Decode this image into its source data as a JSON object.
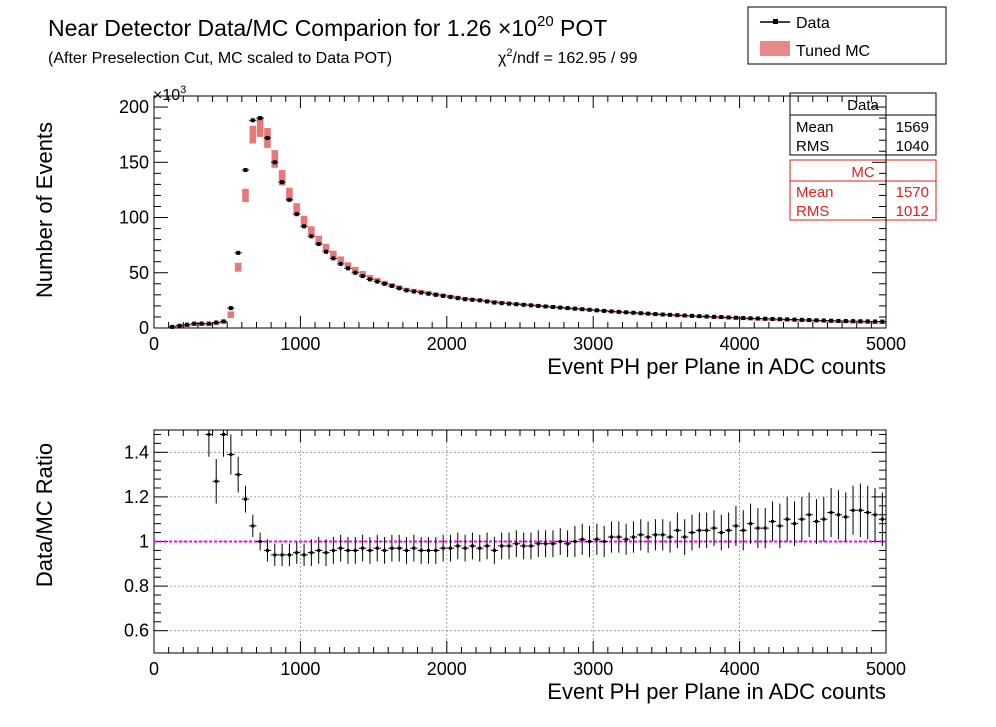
{
  "title": {
    "main": "Near Detector Data/MC Comparion for 1.26 ×10",
    "main_sup": "20",
    "main_suffix": " POT",
    "subtitle": "(After Preselection Cut, MC scaled to Data POT)",
    "chi2_prefix": "χ",
    "chi2_sup": "2",
    "chi2_suffix": "/ndf = 162.95 / 99"
  },
  "legend": {
    "data_label": "Data",
    "mc_label": "Tuned MC",
    "placement": "top-right"
  },
  "stats": {
    "data": {
      "header": "Data",
      "mean_label": "Mean",
      "mean_value": "1569",
      "rms_label": "RMS",
      "rms_value": "1040"
    },
    "mc": {
      "header": "MC",
      "mean_label": "Mean",
      "mean_value": "1570",
      "rms_label": "RMS",
      "rms_value": "1012"
    }
  },
  "colors": {
    "data": "#000000",
    "mc": "#dd2222",
    "mc_fill": "#e26060",
    "reference_line": "#ff00ff",
    "grid": "#888888"
  },
  "chart_data": [
    {
      "type": "scatter",
      "panel": "top",
      "xlabel": "Event PH per Plane in ADC counts",
      "ylabel": "Number of Events",
      "y_multiplier": "×10",
      "y_multiplier_sup": "3",
      "xlim": [
        0,
        5000
      ],
      "ylim": [
        0,
        210
      ],
      "xticks": [
        0,
        1000,
        2000,
        3000,
        4000,
        5000
      ],
      "yticks": [
        0,
        50,
        100,
        150,
        200
      ],
      "grid": false,
      "series": [
        {
          "name": "Data",
          "x": [
            125,
            175,
            225,
            275,
            325,
            375,
            425,
            475,
            525,
            575,
            625,
            675,
            725,
            775,
            825,
            875,
            925,
            975,
            1025,
            1075,
            1125,
            1175,
            1225,
            1275,
            1325,
            1375,
            1425,
            1475,
            1525,
            1575,
            1625,
            1675,
            1725,
            1775,
            1825,
            1875,
            1925,
            1975,
            2025,
            2075,
            2125,
            2175,
            2225,
            2275,
            2325,
            2375,
            2425,
            2475,
            2525,
            2575,
            2625,
            2675,
            2725,
            2775,
            2825,
            2875,
            2925,
            2975,
            3025,
            3075,
            3125,
            3175,
            3225,
            3275,
            3325,
            3375,
            3425,
            3475,
            3525,
            3575,
            3625,
            3675,
            3725,
            3775,
            3825,
            3875,
            3925,
            3975,
            4025,
            4075,
            4125,
            4175,
            4225,
            4275,
            4325,
            4375,
            4425,
            4475,
            4525,
            4575,
            4625,
            4675,
            4725,
            4775,
            4825,
            4875,
            4925,
            4975
          ],
          "y": [
            1,
            2,
            3,
            4,
            4,
            4,
            5,
            6,
            18,
            68,
            143,
            188,
            190,
            172,
            150,
            132,
            116,
            103,
            92,
            83,
            76,
            69,
            63,
            58,
            54,
            50,
            47,
            44,
            42,
            40,
            38,
            36,
            34,
            33,
            32,
            31,
            30,
            29,
            28,
            27,
            26,
            25.5,
            25,
            24,
            23,
            22.5,
            22,
            21.5,
            21,
            20.5,
            20,
            19.5,
            19,
            18.5,
            18,
            17.5,
            17,
            16.5,
            16,
            15.5,
            15,
            14.6,
            14.2,
            13.8,
            13.4,
            13,
            12.6,
            12.2,
            11.9,
            11.6,
            11.3,
            11,
            10.7,
            10.4,
            10.1,
            9.9,
            9.6,
            9.3,
            9,
            8.8,
            8.6,
            8.4,
            8.2,
            8,
            7.8,
            7.6,
            7.4,
            7.2,
            7,
            6.8,
            6.6,
            6.4,
            6.3,
            6.2,
            6.1,
            6,
            5.9,
            5.8
          ]
        },
        {
          "name": "Tuned MC",
          "x": [
            125,
            175,
            225,
            275,
            325,
            375,
            425,
            475,
            525,
            575,
            625,
            675,
            725,
            775,
            825,
            875,
            925,
            975,
            1025,
            1075,
            1125,
            1175,
            1225,
            1275,
            1325,
            1375,
            1425,
            1475,
            1525,
            1575,
            1625,
            1675,
            1725,
            1775,
            1825,
            1875,
            1925,
            1975,
            2025,
            2075,
            2125,
            2175,
            2225,
            2275,
            2325,
            2375,
            2425,
            2475,
            2525,
            2575,
            2625,
            2675,
            2725,
            2775,
            2825,
            2875,
            2925,
            2975,
            3025,
            3075,
            3125,
            3175,
            3225,
            3275,
            3325,
            3375,
            3425,
            3475,
            3525,
            3575,
            3625,
            3675,
            3725,
            3775,
            3825,
            3875,
            3925,
            3975,
            4025,
            4075,
            4125,
            4175,
            4225,
            4275,
            4325,
            4375,
            4425,
            4475,
            4525,
            4575,
            4625,
            4675,
            4725,
            4775,
            4825,
            4875,
            4925,
            4975
          ],
          "y": [
            1,
            2,
            2,
            3,
            3,
            3,
            4,
            5,
            12,
            55,
            120,
            175,
            182,
            172,
            153,
            136,
            121,
            108,
            97,
            88,
            80,
            73,
            67,
            62,
            57,
            53,
            49.5,
            46,
            43.5,
            41,
            39,
            37,
            35,
            34,
            33,
            32,
            31,
            30,
            29,
            28,
            27,
            26.3,
            25.6,
            24.9,
            24.2,
            23.5,
            22.8,
            22.2,
            21.6,
            21,
            20.4,
            19.8,
            19.2,
            18.6,
            18,
            17.5,
            17,
            16.5,
            16,
            15.5,
            15,
            14.6,
            14.2,
            13.8,
            13.4,
            13,
            12.6,
            12.2,
            11.8,
            11.4,
            11,
            10.7,
            10.4,
            10.1,
            9.8,
            9.5,
            9.2,
            8.9,
            8.6,
            8.3,
            8,
            7.8,
            7.6,
            7.4,
            7.2,
            7,
            6.8,
            6.6,
            6.4,
            6.2,
            6,
            5.8,
            5.6,
            5.4,
            5.2,
            5,
            4.9,
            4.8
          ],
          "band": [
            1,
            1,
            1,
            1,
            1,
            1,
            1,
            1,
            3,
            4,
            6,
            8,
            9,
            9,
            8,
            7,
            6,
            5,
            4.5,
            4,
            3.5,
            3.2,
            3,
            2.8,
            2.5,
            2.3,
            2.1,
            2,
            1.9,
            1.8,
            1.7,
            1.6,
            1.5,
            1.5,
            1.4,
            1.4,
            1.3,
            1.3,
            1.2,
            1.2,
            1.2,
            1.1,
            1.1,
            1.1,
            1,
            1,
            1,
            1,
            1,
            1,
            1,
            1,
            1,
            1,
            1,
            1,
            1,
            1,
            1,
            1,
            1,
            1,
            1,
            1,
            1,
            1,
            1,
            1,
            1,
            1,
            1,
            1,
            1,
            1,
            1,
            1,
            1,
            1,
            1,
            1,
            1,
            1,
            1,
            1,
            1,
            1,
            1,
            1,
            1,
            1,
            1,
            1,
            1,
            1,
            1,
            1,
            1,
            1
          ]
        }
      ]
    },
    {
      "type": "scatter",
      "panel": "bottom",
      "xlabel": "Event PH per Plane in ADC counts",
      "ylabel": "Data/MC Ratio",
      "xlim": [
        0,
        5000
      ],
      "ylim": [
        0.5,
        1.5
      ],
      "xticks": [
        0,
        1000,
        2000,
        3000,
        4000,
        5000
      ],
      "yticks": [
        0.6,
        0.8,
        1,
        1.2,
        1.4
      ],
      "yticklabels": [
        "0.6",
        "0.8",
        "1",
        "1.2",
        "1.4"
      ],
      "grid": true,
      "reference_line": 1,
      "series": [
        {
          "name": "Data/MC Ratio",
          "x": [
            375,
            425,
            475,
            525,
            575,
            625,
            675,
            725,
            775,
            825,
            875,
            925,
            975,
            1025,
            1075,
            1125,
            1175,
            1225,
            1275,
            1325,
            1375,
            1425,
            1475,
            1525,
            1575,
            1625,
            1675,
            1725,
            1775,
            1825,
            1875,
            1925,
            1975,
            2025,
            2075,
            2125,
            2175,
            2225,
            2275,
            2325,
            2375,
            2425,
            2475,
            2525,
            2575,
            2625,
            2675,
            2725,
            2775,
            2825,
            2875,
            2925,
            2975,
            3025,
            3075,
            3125,
            3175,
            3225,
            3275,
            3325,
            3375,
            3425,
            3475,
            3525,
            3575,
            3625,
            3675,
            3725,
            3775,
            3825,
            3875,
            3925,
            3975,
            4025,
            4075,
            4125,
            4175,
            4225,
            4275,
            4325,
            4375,
            4425,
            4475,
            4525,
            4575,
            4625,
            4675,
            4725,
            4775,
            4825,
            4875,
            4925,
            4975
          ],
          "y": [
            1.48,
            1.27,
            1.48,
            1.39,
            1.3,
            1.19,
            1.07,
            1,
            0.96,
            0.94,
            0.94,
            0.94,
            0.95,
            0.94,
            0.95,
            0.96,
            0.95,
            0.96,
            0.97,
            0.96,
            0.96,
            0.97,
            0.96,
            0.97,
            0.96,
            0.97,
            0.97,
            0.96,
            0.97,
            0.96,
            0.96,
            0.96,
            0.97,
            0.97,
            0.98,
            0.97,
            0.98,
            0.97,
            0.98,
            0.96,
            0.98,
            0.98,
            0.99,
            0.98,
            0.98,
            0.99,
            0.99,
            0.99,
            1,
            0.99,
            1,
            1.01,
            1,
            1.01,
            1,
            1.02,
            1.02,
            1.01,
            1.02,
            1.03,
            1.02,
            1.03,
            1.03,
            1.02,
            1.05,
            1.02,
            1.04,
            1.05,
            1.05,
            1.06,
            1.04,
            1.05,
            1.07,
            1.05,
            1.08,
            1.06,
            1.06,
            1.09,
            1.07,
            1.1,
            1.08,
            1.1,
            1.12,
            1.09,
            1.1,
            1.13,
            1.12,
            1.11,
            1.14,
            1.14,
            1.13,
            1.12,
            1.1
          ],
          "err": [
            0.1,
            0.1,
            0.1,
            0.09,
            0.08,
            0.06,
            0.05,
            0.04,
            0.05,
            0.05,
            0.05,
            0.05,
            0.05,
            0.05,
            0.06,
            0.06,
            0.06,
            0.06,
            0.06,
            0.06,
            0.06,
            0.06,
            0.06,
            0.06,
            0.06,
            0.06,
            0.06,
            0.06,
            0.06,
            0.06,
            0.06,
            0.06,
            0.06,
            0.06,
            0.06,
            0.06,
            0.06,
            0.06,
            0.06,
            0.06,
            0.06,
            0.06,
            0.06,
            0.06,
            0.06,
            0.06,
            0.06,
            0.06,
            0.06,
            0.06,
            0.07,
            0.07,
            0.07,
            0.07,
            0.07,
            0.07,
            0.07,
            0.07,
            0.07,
            0.07,
            0.07,
            0.07,
            0.07,
            0.07,
            0.08,
            0.08,
            0.08,
            0.08,
            0.08,
            0.08,
            0.08,
            0.08,
            0.09,
            0.09,
            0.09,
            0.09,
            0.09,
            0.09,
            0.1,
            0.1,
            0.1,
            0.1,
            0.1,
            0.1,
            0.1,
            0.11,
            0.11,
            0.11,
            0.11,
            0.12,
            0.12,
            0.12,
            0.12
          ]
        }
      ]
    }
  ]
}
